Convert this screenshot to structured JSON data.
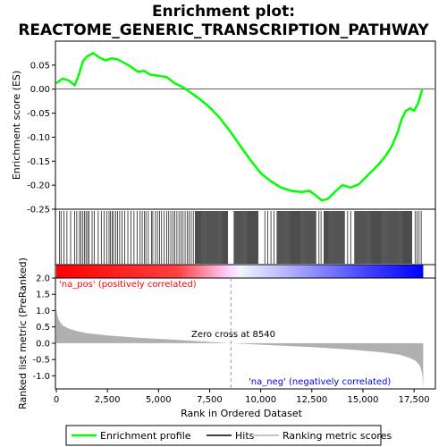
{
  "chart_data": {
    "type": "line",
    "title_line1": "Enrichment plot:",
    "title_line2": "REACTOME_GENERIC_TRANSCRIPTION_PATHWAY",
    "es_panel": {
      "ylabel": "Enrichment score (ES)",
      "ylim": [
        -0.25,
        0.1
      ],
      "yticks": [
        {
          "v": 0.05,
          "label": "0.05"
        },
        {
          "v": 0.0,
          "label": "0.00"
        },
        {
          "v": -0.05,
          "label": "-0.05"
        },
        {
          "v": -0.1,
          "label": "-0.10"
        },
        {
          "v": -0.15,
          "label": "-0.15"
        },
        {
          "v": -0.2,
          "label": "-0.20"
        },
        {
          "v": -0.25,
          "label": "-0.25"
        }
      ],
      "series_name": "Enrichment profile",
      "x": [
        0,
        300,
        600,
        900,
        1100,
        1300,
        1500,
        1800,
        2100,
        2400,
        2700,
        3000,
        3300,
        3600,
        4000,
        4300,
        4600,
        5000,
        5400,
        5800,
        6200,
        6600,
        7000,
        7500,
        8000,
        8540,
        9000,
        9500,
        10000,
        10500,
        11000,
        11500,
        12000,
        12400,
        12800,
        13000,
        13300,
        13600,
        14000,
        14400,
        14800,
        15100,
        15500,
        15800,
        16100,
        16400,
        16700,
        16900,
        17100,
        17300,
        17500,
        17700,
        17900
      ],
      "y": [
        0.012,
        0.022,
        0.018,
        0.008,
        0.03,
        0.058,
        0.068,
        0.075,
        0.066,
        0.06,
        0.064,
        0.062,
        0.055,
        0.048,
        0.036,
        0.038,
        0.03,
        0.028,
        0.025,
        0.012,
        0.004,
        -0.008,
        -0.02,
        -0.038,
        -0.06,
        -0.09,
        -0.118,
        -0.148,
        -0.175,
        -0.192,
        -0.205,
        -0.212,
        -0.214,
        -0.212,
        -0.225,
        -0.232,
        -0.228,
        -0.215,
        -0.2,
        -0.205,
        -0.198,
        -0.185,
        -0.168,
        -0.155,
        -0.14,
        -0.12,
        -0.09,
        -0.062,
        -0.045,
        -0.04,
        -0.045,
        -0.03,
        0.0
      ]
    },
    "ranked_panel": {
      "ylabel": "Ranked list metric (PreRanked)",
      "ylim": [
        -1.4,
        2.0
      ],
      "yticks": [
        {
          "v": 2.0,
          "label": "2.0"
        },
        {
          "v": 1.5,
          "label": "1.5"
        },
        {
          "v": 1.0,
          "label": "1.0"
        },
        {
          "v": 0.5,
          "label": "0.5"
        },
        {
          "v": 0.0,
          "label": "0.0"
        },
        {
          "v": -0.5,
          "label": "-0.5"
        },
        {
          "v": -1.0,
          "label": "-1.0"
        }
      ],
      "x": [
        0,
        50,
        150,
        300,
        600,
        1000,
        1500,
        2500,
        4000,
        6000,
        8540,
        10500,
        12500,
        14500,
        16000,
        16800,
        17300,
        17600,
        17800,
        17900,
        17950
      ],
      "y": [
        1.05,
        0.85,
        0.68,
        0.55,
        0.45,
        0.37,
        0.31,
        0.24,
        0.17,
        0.1,
        0.0,
        -0.06,
        -0.12,
        -0.2,
        -0.28,
        -0.35,
        -0.45,
        -0.55,
        -0.7,
        -0.95,
        -1.35
      ],
      "pos_label": "'na_pos' (positively correlated)",
      "neg_label": "'na_neg' (negatively correlated)",
      "zero_cross_label": "Zero cross at 8540",
      "zero_cross": 8540
    },
    "xaxis": {
      "label": "Rank in Ordered Dataset",
      "xlim": [
        0,
        18500
      ],
      "ticks": [
        {
          "v": 0,
          "label": "0"
        },
        {
          "v": 2500,
          "label": "2,500"
        },
        {
          "v": 5000,
          "label": "5,000"
        },
        {
          "v": 7500,
          "label": "7,500"
        },
        {
          "v": 10000,
          "label": "10,000"
        },
        {
          "v": 12500,
          "label": "12,500"
        },
        {
          "v": 15000,
          "label": "15,000"
        },
        {
          "v": 17500,
          "label": "17,500"
        }
      ]
    },
    "hits": {
      "dense_ranges": [
        [
          6800,
          8400
        ],
        [
          8700,
          9900
        ],
        [
          10800,
          12700
        ],
        [
          13100,
          14100
        ],
        [
          14600,
          17400
        ]
      ],
      "sparse_hits": [
        150,
        230,
        380,
        520,
        700,
        900,
        1000,
        1130,
        1200,
        1300,
        1380,
        1450,
        1530,
        1600,
        1750,
        1850,
        2050,
        2200,
        2330,
        2460,
        2580,
        2650,
        2730,
        2800,
        2900,
        3000,
        3100,
        3220,
        3350,
        3500,
        3650,
        3800,
        3950,
        4100,
        4200,
        4300,
        4380,
        4500,
        4650,
        4720,
        4850,
        4950,
        5050,
        5150,
        5280,
        5400,
        5500,
        5600,
        5700,
        5800,
        5900,
        6000,
        6100,
        6200,
        6300,
        6400,
        6500,
        6600,
        6700,
        10200,
        10350,
        10500,
        10650,
        12850,
        12950,
        14250,
        14400,
        17550,
        17650,
        17750,
        17850
      ]
    },
    "legend": {
      "enrichment": "Enrichment profile",
      "hits": "Hits",
      "ranking": "Ranking metric scores"
    },
    "colors": {
      "enrichment_line": "#00ff00",
      "hits": "#000000",
      "metric_fill": "#b0b0b0",
      "pos_text": "#ff0000",
      "neg_text": "#0000ff",
      "bar_red": "#ff0000",
      "bar_white": "#ffffff",
      "bar_blue": "#0000ff"
    }
  }
}
